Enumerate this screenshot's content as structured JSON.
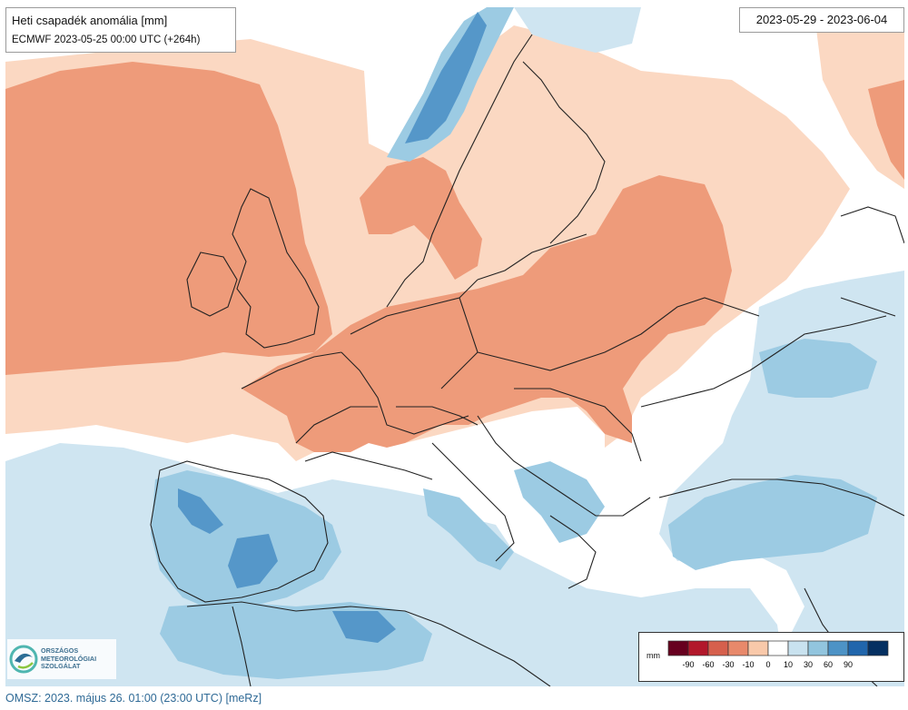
{
  "title": "Heti csapadék anomália [mm]",
  "subtitle": "ECMWF 2023-05-25 00:00 UTC (+264h)",
  "period": "2023-05-29 - 2023-06-04",
  "footer": "OMSZ: 2023. május 26. 01:00 (23:00  UTC)  [meRz]",
  "logo": {
    "lines": [
      "ORSZÁGOS",
      "METEOROLÓGIAI",
      "SZOLGÁLAT"
    ],
    "icon": "omsz-swirl-logo-icon"
  },
  "legend": {
    "unit": "mm",
    "ticks": [
      "-90",
      "-60",
      "-30",
      "-10",
      "0",
      "10",
      "30",
      "60",
      "90"
    ],
    "colors": [
      "#67001f",
      "#b2182b",
      "#d6604d",
      "#e8896b",
      "#f9c9aa",
      "#ffffff",
      "#c9e2ef",
      "#92c5de",
      "#4d93c6",
      "#2166ac",
      "#053061"
    ]
  },
  "palette": {
    "dry_strong": "#ee9b7a",
    "dry_light": "#fbd8c2",
    "neutral": "#ffffff",
    "wet_light": "#cfe5f1",
    "wet_medium": "#9ccbe3",
    "wet_strong": "#5597c9",
    "wet_dark": "#3a79b4",
    "border": "#222222"
  }
}
